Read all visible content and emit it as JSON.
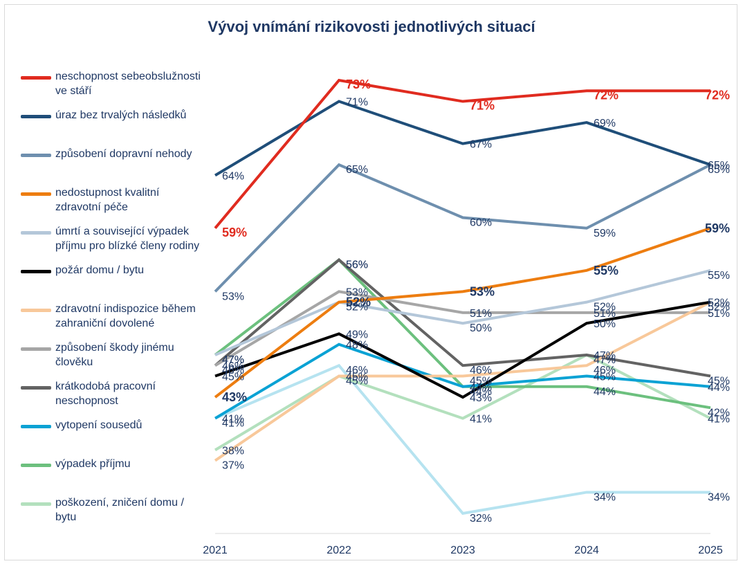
{
  "chart_data": {
    "type": "line",
    "title": "Vývoj vnímání rizikovosti jednotlivých situací",
    "categories": [
      "2021",
      "2022",
      "2023",
      "2024",
      "2025"
    ],
    "ylim": [
      28,
      78
    ],
    "legend_position": "left",
    "grid": false,
    "series": [
      {
        "name": "neschopnost sebeobslužnosti ve stáří",
        "color": "#e02b1f",
        "values": [
          59,
          73,
          71,
          72,
          72
        ],
        "labels": [
          "59%",
          "73%",
          "71%",
          "72%",
          "72%"
        ]
      },
      {
        "name": "úraz bez trvalých následků",
        "color": "#1f4e79",
        "values": [
          64,
          71,
          67,
          69,
          65
        ],
        "labels": [
          "64%",
          "71%",
          "67%",
          "69%",
          "65%"
        ]
      },
      {
        "name": "způsobení dopravní nehody",
        "color": "#6e8fae",
        "values": [
          53,
          65,
          60,
          59,
          65
        ],
        "labels": [
          "53%",
          "65%",
          "60%",
          "59%",
          "65%"
        ]
      },
      {
        "name": "nedostupnost kvalitní zdravotní péče",
        "color": "#ed7d10",
        "values": [
          43,
          52,
          53,
          55,
          59
        ],
        "labels": [
          "43%",
          "52%",
          "53%",
          "55%",
          "59%"
        ]
      },
      {
        "name": "úmrtí a související výpadek příjmu pro blízké členy rodiny",
        "color": "#b4c7d9",
        "values": [
          47,
          52,
          50,
          52,
          55
        ],
        "labels": [
          "47%",
          "52%",
          "50%",
          "52%",
          "55%"
        ]
      },
      {
        "name": "požár domu / bytu",
        "color": "#000000",
        "values": [
          45,
          49,
          43,
          50,
          52
        ],
        "labels": [
          "45%",
          "49%",
          "43%",
          "50%",
          "52%"
        ]
      },
      {
        "name": "zdravotní indispozice během zahraniční dovolené",
        "color": "#f8c89a",
        "values": [
          37,
          45,
          45,
          46,
          52
        ],
        "labels": [
          "37%",
          "45%",
          "45%",
          "46%",
          "52%"
        ]
      },
      {
        "name": "způsobení škody jinému člověku",
        "color": "#a6a6a6",
        "values": [
          46,
          53,
          51,
          51,
          51
        ],
        "labels": [
          "46%",
          "53%",
          "51%",
          "51%",
          "51%"
        ]
      },
      {
        "name": "krátkodobá pracovní neschopnost",
        "color": "#636363",
        "values": [
          46,
          56,
          46,
          47,
          45
        ],
        "labels": [
          "46%",
          "56%",
          "46%",
          "47%",
          "45%"
        ]
      },
      {
        "name": "vytopení sousedů",
        "color": "#0aa2d4",
        "values": [
          41,
          48,
          44,
          45,
          44
        ],
        "labels": [
          "41%",
          "48%",
          "44%",
          "45%",
          "44%"
        ]
      },
      {
        "name": "výpadek příjmu",
        "color": "#6cc07e",
        "values": [
          47,
          56,
          44,
          44,
          42
        ],
        "labels": [
          "47%",
          "56%",
          "44%",
          "44%",
          "42%"
        ]
      },
      {
        "name": "poškození, zničení domu / bytu",
        "color": "#b3e0bd",
        "values": [
          38,
          45,
          41,
          47,
          41
        ],
        "labels": [
          "38%",
          "45%",
          "41%",
          "47%",
          "41%"
        ]
      },
      {
        "name": "",
        "color": "#b6e3f0",
        "values": [
          41,
          46,
          32,
          34,
          34
        ],
        "labels": [
          "41%",
          "46%",
          "32%",
          "34%",
          "34%"
        ]
      }
    ]
  }
}
